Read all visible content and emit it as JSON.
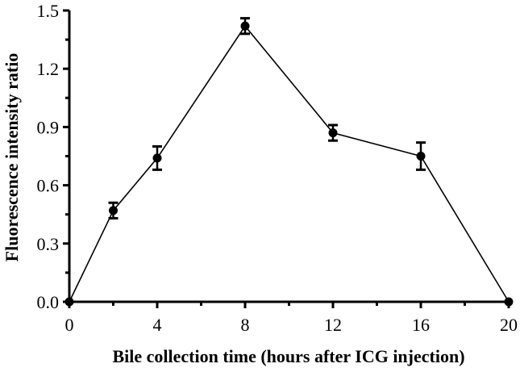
{
  "chart_data": {
    "type": "line",
    "title": "",
    "xlabel": "Bile collection time (hours after ICG injection)",
    "ylabel": "Fluorescence intensity ratio",
    "xlim": [
      0,
      20
    ],
    "ylim": [
      0,
      1.5
    ],
    "x_ticks": [
      0,
      4,
      8,
      12,
      16,
      20
    ],
    "x_tick_labels": [
      "0",
      "4",
      "8",
      "12",
      "16",
      "20"
    ],
    "x_minor_ticks": [
      2,
      6,
      10,
      14,
      18
    ],
    "y_ticks": [
      0,
      0.3,
      0.6,
      0.9,
      1.2,
      1.5
    ],
    "y_tick_labels": [
      "0.0",
      "0.3",
      "0.6",
      "0.9",
      "1.2",
      "1.5"
    ],
    "y_minor_ticks": [
      0.15,
      0.45,
      0.75,
      1.05,
      1.35
    ],
    "grid": false,
    "legend": null,
    "series": [
      {
        "name": "Fluorescence intensity ratio",
        "x": [
          0,
          2,
          4,
          8,
          12,
          16,
          20
        ],
        "values": [
          0.0,
          0.47,
          0.74,
          1.42,
          0.87,
          0.75,
          0.0
        ],
        "error": [
          0.0,
          0.04,
          0.06,
          0.04,
          0.04,
          0.07,
          0.0
        ],
        "color": "#000000",
        "marker": "circle"
      }
    ]
  }
}
